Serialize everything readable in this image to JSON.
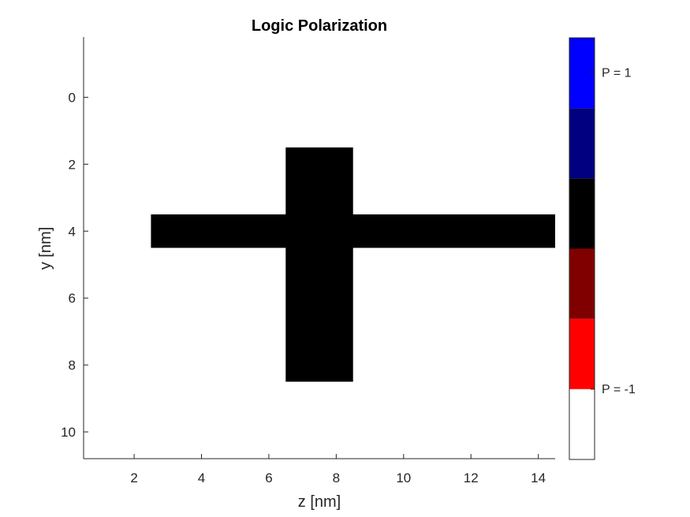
{
  "chart_data": {
    "type": "heatmap",
    "title": "Logic Polarization",
    "xlabel": "z [nm]",
    "ylabel": "y [nm]",
    "xlim": [
      0.5,
      14.5
    ],
    "ylim": [
      -1.8,
      10.8
    ],
    "y_reversed": true,
    "xticks": [
      2,
      4,
      6,
      8,
      10,
      12,
      14
    ],
    "yticks": [
      0,
      2,
      4,
      6,
      8,
      10
    ],
    "background_color": "#ffffff",
    "regions": [
      {
        "name": "horizontal-wire",
        "z": [
          2.5,
          14.5
        ],
        "y": [
          3.5,
          4.5
        ],
        "polarization": 0,
        "color": "#000000"
      },
      {
        "name": "vertical-wire",
        "z": [
          6.5,
          8.5
        ],
        "y": [
          1.5,
          8.5
        ],
        "polarization": 0,
        "color": "#000000"
      }
    ],
    "colorbar": {
      "colors": [
        "#0000ff",
        "#000080",
        "#000000",
        "#800000",
        "#ff0000",
        "#ffffff"
      ],
      "labels": [
        "P = 1",
        "P = -1"
      ],
      "label_positions": [
        0,
        4.5
      ]
    }
  }
}
